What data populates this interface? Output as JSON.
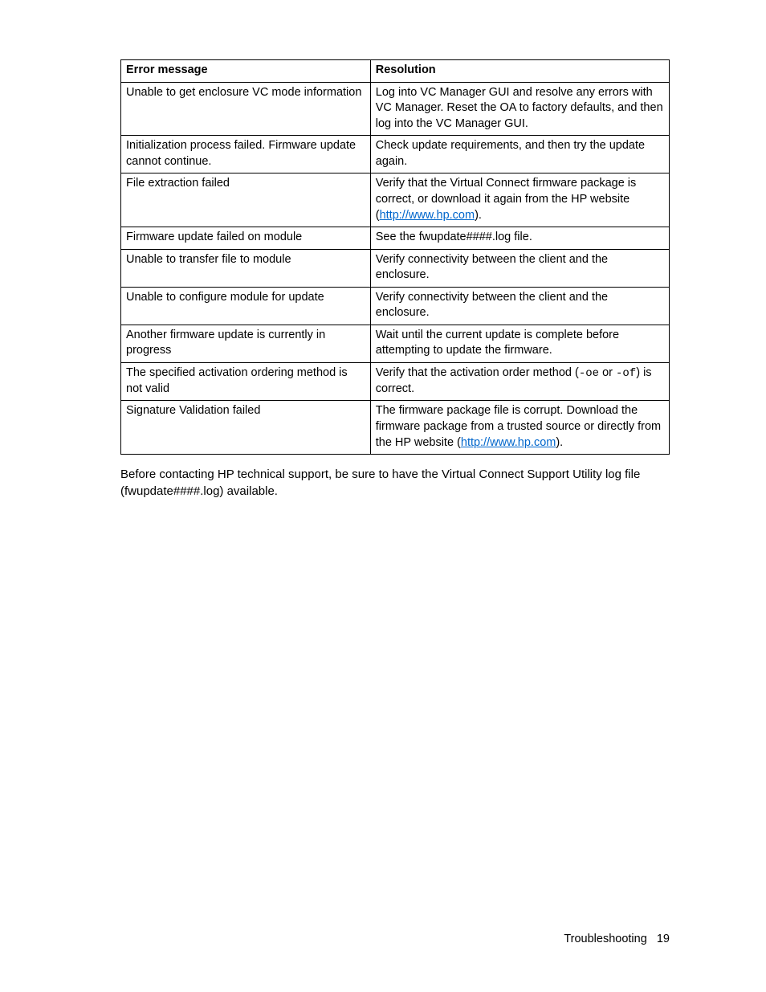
{
  "table": {
    "headers": {
      "error": "Error message",
      "resolution": "Resolution"
    },
    "rows": [
      {
        "error": "Unable to get enclosure VC mode information",
        "res_pre": "Log into VC Manager GUI and resolve any errors with VC Manager. Reset the OA to factory defaults, and then log into the VC Manager GUI.",
        "link": "",
        "res_post": ""
      },
      {
        "error": "Initialization process failed. Firmware update cannot continue.",
        "res_pre": "Check update requirements, and then try the update again.",
        "link": "",
        "res_post": ""
      },
      {
        "error": "File extraction failed",
        "res_pre": "Verify that the Virtual Connect firmware package is correct, or download it again from the HP website (",
        "link": "http://www.hp.com",
        "res_post": ")."
      },
      {
        "error": "Firmware update failed on module",
        "res_pre": "See the fwupdate####.log file.",
        "link": "",
        "res_post": ""
      },
      {
        "error": "Unable to transfer file to module",
        "res_pre": "Verify connectivity between the client and the enclosure.",
        "link": "",
        "res_post": ""
      },
      {
        "error": "Unable to configure module for update",
        "res_pre": "Verify connectivity between the client and the enclosure.",
        "link": "",
        "res_post": ""
      },
      {
        "error": "Another firmware update is currently in progress",
        "res_pre": "Wait until the current update is complete before attempting to update the firmware.",
        "link": "",
        "res_post": ""
      },
      {
        "error": "The specified activation ordering method is not valid",
        "res_pre": "Verify that the activation order method (",
        "mono1": "-oe",
        "mid": " or ",
        "mono2": "-of",
        "res_post": ") is correct.",
        "link": ""
      },
      {
        "error": "Signature Validation failed",
        "res_pre": "The firmware package file is corrupt. Download the firmware package from a trusted source or directly from the HP website (",
        "link": "http://www.hp.com",
        "res_post": ")."
      }
    ]
  },
  "note": "Before contacting HP technical support, be sure to have the Virtual Connect Support Utility log file (fwupdate####.log) available.",
  "footer": {
    "section": "Troubleshooting",
    "page": "19"
  },
  "style": {
    "link_color": "#0066cc",
    "border_color": "#000000",
    "font_size_body": 14.5,
    "font_size_note": 15
  }
}
